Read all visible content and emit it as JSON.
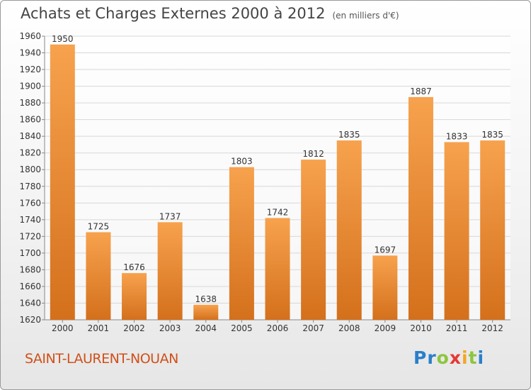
{
  "title": "Achats et Charges Externes 2000 à 2012",
  "unit": "(en milliers d'€)",
  "commune": "SAINT-LAURENT-NOUAN",
  "logo": {
    "letters": [
      "P",
      "r",
      "o",
      "x",
      "i",
      "t",
      "i"
    ],
    "colors": [
      "#2a7fc9",
      "#2a7fc9",
      "#8cc63f",
      "#e53935",
      "#f5a623",
      "#8cc63f",
      "#2a7fc9"
    ]
  },
  "colors": {
    "bar_top": "#f7a24e",
    "bar_bottom": "#d4701c",
    "grid": "#d8d8d8",
    "axis": "#888888"
  },
  "chart_data": {
    "type": "bar",
    "categories": [
      "2000",
      "2001",
      "2002",
      "2003",
      "2004",
      "2005",
      "2006",
      "2007",
      "2008",
      "2009",
      "2010",
      "2011",
      "2012"
    ],
    "values": [
      1950,
      1725,
      1676,
      1737,
      1638,
      1803,
      1742,
      1812,
      1835,
      1697,
      1887,
      1833,
      1835
    ],
    "ylim": [
      1620,
      1960
    ],
    "yticks": [
      1620,
      1640,
      1660,
      1680,
      1700,
      1720,
      1740,
      1760,
      1780,
      1800,
      1820,
      1840,
      1860,
      1880,
      1900,
      1920,
      1940,
      1960
    ],
    "grid": true
  }
}
